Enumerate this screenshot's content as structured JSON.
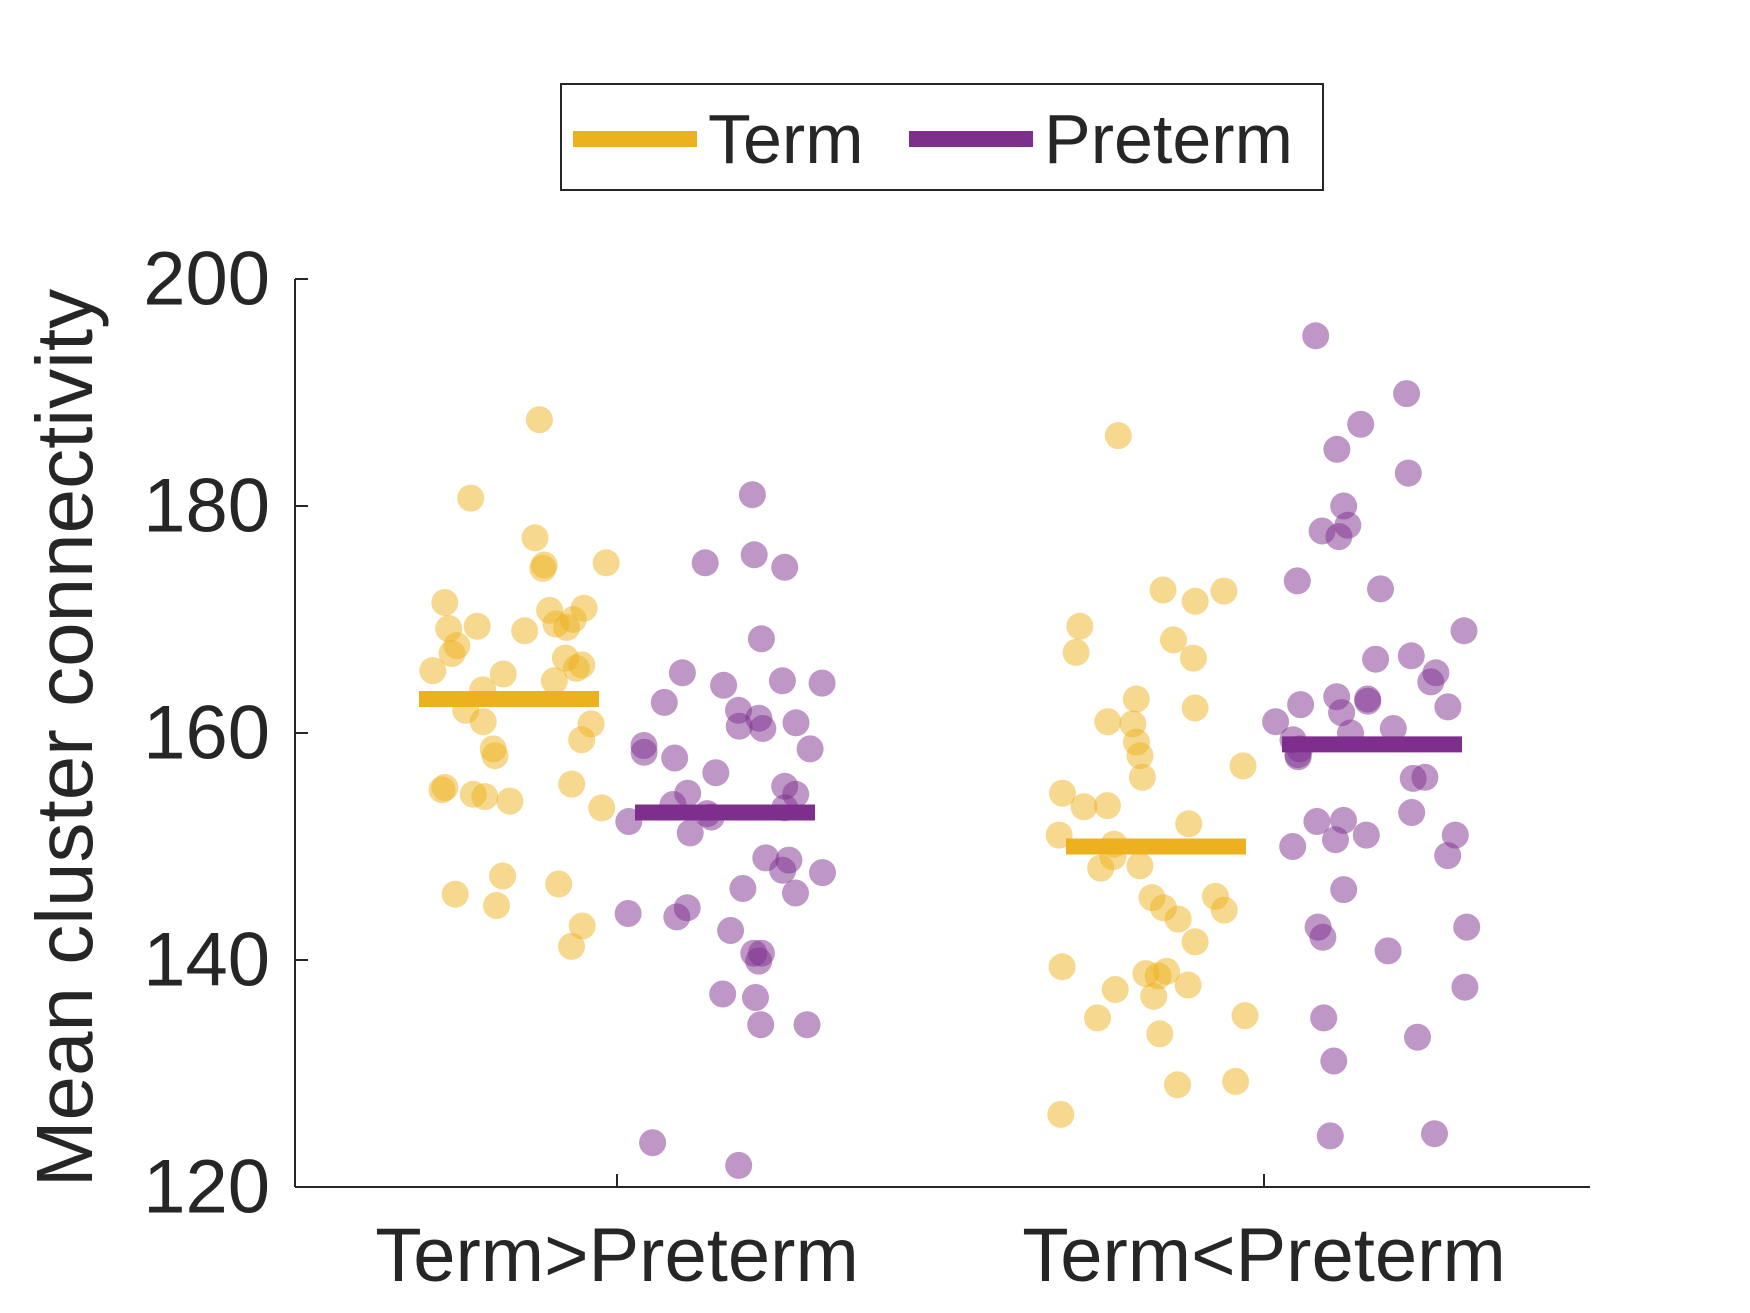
{
  "chart_data": {
    "type": "scatter",
    "title": "",
    "xlabel": "",
    "ylabel": "Mean cluster connectivity",
    "categories": [
      "Term>Preterm",
      "Term<Preterm"
    ],
    "ylim": [
      120,
      200
    ],
    "yticks": [
      120,
      140,
      160,
      180,
      200
    ],
    "grid": false,
    "legend": {
      "position": "top-center",
      "orientation": "horizontal"
    },
    "series": [
      {
        "name": "Term",
        "color": "#EDB120",
        "means": [
          163,
          150
        ],
        "groups": [
          [
            187.6,
            180.7,
            177.2,
            175.0,
            174.8,
            174.5,
            171.5,
            171.0,
            170.8,
            170.0,
            169.6,
            169.4,
            169.3,
            169.2,
            169.0,
            167.7,
            167.0,
            166.6,
            166.0,
            165.7,
            165.5,
            165.2,
            164.6,
            163.8,
            162.0,
            161.0,
            160.8,
            159.4,
            158.6,
            158.0,
            155.5,
            155.2,
            155.0,
            154.6,
            154.4,
            154.0,
            153.4,
            147.4,
            146.7,
            145.8,
            144.8,
            143.0,
            141.2
          ],
          [
            186.2,
            172.6,
            172.5,
            171.6,
            169.4,
            168.2,
            167.1,
            166.6,
            163.0,
            162.2,
            161.0,
            160.8,
            159.2,
            158.0,
            157.1,
            156.1,
            154.7,
            153.6,
            153.5,
            152.0,
            151.0,
            150.2,
            149.1,
            148.3,
            148.1,
            145.6,
            145.5,
            144.6,
            144.4,
            143.6,
            141.6,
            139.4,
            139.0,
            138.8,
            138.6,
            137.8,
            137.4,
            136.8,
            135.1,
            134.9,
            133.5,
            129.3,
            129.0,
            126.4
          ]
        ]
      },
      {
        "name": "Preterm",
        "color": "#7E2F8E",
        "means": [
          153,
          159
        ],
        "groups": [
          [
            181.0,
            175.7,
            175.0,
            174.6,
            168.3,
            165.3,
            164.6,
            164.4,
            164.2,
            162.7,
            162.0,
            161.3,
            160.9,
            160.6,
            160.4,
            158.9,
            158.6,
            158.3,
            157.8,
            156.5,
            155.3,
            154.7,
            154.6,
            153.7,
            153.4,
            152.9,
            152.6,
            152.2,
            151.2,
            149.0,
            148.8,
            147.9,
            147.7,
            146.3,
            145.9,
            144.6,
            144.1,
            143.8,
            142.6,
            140.6,
            140.6,
            139.9,
            137.0,
            136.7,
            134.3,
            134.3,
            123.9,
            121.9
          ],
          [
            195.0,
            189.9,
            187.2,
            185.0,
            182.9,
            180.0,
            178.3,
            177.8,
            177.3,
            173.4,
            172.7,
            169.0,
            166.8,
            166.5,
            165.3,
            164.5,
            163.2,
            163.0,
            162.8,
            162.5,
            162.3,
            161.8,
            161.0,
            160.4,
            160.0,
            159.4,
            158.6,
            158.1,
            157.9,
            156.1,
            156.0,
            153.0,
            152.3,
            152.2,
            151.0,
            151.0,
            150.6,
            150.0,
            149.2,
            146.2,
            142.9,
            142.9,
            142.0,
            140.8,
            137.6,
            134.9,
            133.2,
            131.1,
            124.7,
            124.5
          ]
        ]
      }
    ]
  }
}
